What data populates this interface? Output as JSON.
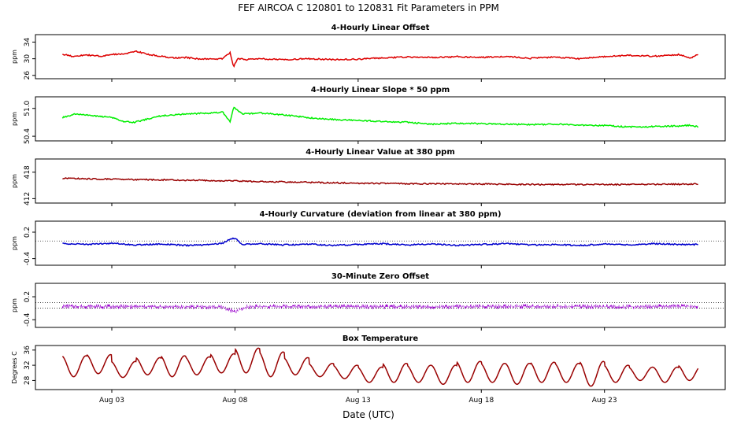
{
  "title": "FEF   AIRCOA C   120801 to 120831   Fit Parameters in PPM",
  "xlabel": "Date (UTC)",
  "x_ticks": [
    "Aug 03",
    "Aug 08",
    "Aug 13",
    "Aug 18",
    "Aug 23"
  ],
  "x_tick_days": [
    3,
    8,
    13,
    18,
    23
  ],
  "xlim": [
    -0.1,
    27.9
  ],
  "data_span": [
    1.0,
    26.8
  ],
  "chart_data": [
    {
      "type": "line",
      "title": "4-Hourly Linear Offset",
      "ylabel": "ppm",
      "y_ticks": [
        "34",
        "30",
        "26"
      ],
      "y_tick_values": [
        34,
        30,
        26
      ],
      "ylim": [
        25.2,
        35.8
      ],
      "color": "#dd0000",
      "style": "line",
      "series": [
        {
          "x": [
            1.0,
            1.4,
            2.0,
            2.5,
            3.0,
            3.5,
            4.0,
            4.5,
            5.0,
            5.5,
            6.0,
            6.5,
            7.0,
            7.5,
            7.8,
            7.95,
            8.1,
            8.4,
            9.0,
            10.0,
            11.0,
            12.0,
            13.0,
            14.0,
            15.0,
            16.0,
            17.0,
            18.0,
            19.0,
            20.0,
            21.0,
            22.0,
            23.0,
            24.0,
            25.0,
            26.0,
            26.5,
            26.8
          ],
          "values": [
            31.1,
            30.6,
            30.9,
            30.6,
            31.0,
            31.2,
            31.8,
            31.0,
            30.6,
            30.2,
            30.3,
            30.0,
            29.9,
            30.0,
            31.5,
            28.0,
            30.1,
            29.8,
            30.0,
            29.8,
            30.0,
            29.8,
            29.9,
            30.2,
            30.4,
            30.3,
            30.5,
            30.3,
            30.6,
            30.1,
            30.4,
            30.0,
            30.5,
            30.8,
            30.6,
            31.0,
            30.2,
            31.0
          ]
        }
      ]
    },
    {
      "type": "line",
      "title": "4-Hourly Linear Slope * 50 ppm",
      "ylabel": "ppm",
      "y_ticks": [
        "51.0",
        "50.4"
      ],
      "y_tick_values": [
        51.0,
        50.4
      ],
      "ylim": [
        50.3,
        51.25
      ],
      "color": "#00ee00",
      "style": "line",
      "series": [
        {
          "x": [
            1.0,
            1.5,
            2.0,
            3.0,
            3.5,
            3.9,
            4.3,
            5.0,
            6.0,
            7.0,
            7.5,
            7.8,
            7.95,
            8.3,
            9.0,
            10.0,
            11.0,
            12.0,
            13.0,
            14.0,
            15.0,
            16.0,
            17.0,
            18.0,
            19.0,
            20.0,
            21.0,
            22.0,
            23.0,
            24.0,
            25.0,
            26.0,
            26.5,
            26.8
          ],
          "values": [
            50.8,
            50.88,
            50.86,
            50.8,
            50.72,
            50.7,
            50.75,
            50.84,
            50.88,
            50.9,
            50.92,
            50.72,
            51.02,
            50.88,
            50.9,
            50.86,
            50.8,
            50.76,
            50.74,
            50.72,
            50.7,
            50.66,
            50.68,
            50.67,
            50.66,
            50.65,
            50.66,
            50.64,
            50.63,
            50.6,
            50.61,
            50.62,
            50.64,
            50.6
          ]
        }
      ]
    },
    {
      "type": "line",
      "title": "4-Hourly Linear Value at 380 ppm",
      "ylabel": "ppm",
      "y_ticks": [
        "418",
        "412"
      ],
      "y_tick_values": [
        418,
        412
      ],
      "ylim": [
        411.0,
        421.0
      ],
      "color": "#990000",
      "style": "line",
      "series": [
        {
          "x": [
            1.0,
            3.0,
            6.0,
            8.0,
            10.0,
            12.0,
            13.0,
            15.0,
            18.0,
            21.0,
            24.0,
            26.8
          ],
          "values": [
            416.6,
            416.4,
            416.2,
            416.0,
            415.8,
            415.6,
            415.5,
            415.4,
            415.3,
            415.2,
            415.2,
            415.3
          ]
        }
      ]
    },
    {
      "type": "line",
      "title": "4-Hourly Curvature (deviation from linear at 380 ppm)",
      "ylabel": "ppm",
      "y_ticks": [
        "0.2",
        "-0.4"
      ],
      "y_tick_values": [
        0.2,
        -0.4
      ],
      "ylim": [
        -0.55,
        0.45
      ],
      "color": "#0000cc",
      "style": "line",
      "reference_line": 0.0,
      "series": [
        {
          "x": [
            1.0,
            2.0,
            3.0,
            4.0,
            5.0,
            6.0,
            7.0,
            7.5,
            7.8,
            8.0,
            8.3,
            9.0,
            10.0,
            11.0,
            12.0,
            13.0,
            14.0,
            15.0,
            16.0,
            17.0,
            18.0,
            19.0,
            20.0,
            21.0,
            22.0,
            23.0,
            24.0,
            25.0,
            26.0,
            26.8
          ],
          "values": [
            -0.06,
            -0.08,
            -0.05,
            -0.09,
            -0.07,
            -0.1,
            -0.08,
            -0.05,
            0.05,
            0.06,
            -0.08,
            -0.06,
            -0.09,
            -0.07,
            -0.1,
            -0.08,
            -0.06,
            -0.09,
            -0.07,
            -0.1,
            -0.08,
            -0.06,
            -0.09,
            -0.08,
            -0.1,
            -0.07,
            -0.09,
            -0.06,
            -0.08,
            -0.08
          ]
        }
      ]
    },
    {
      "type": "scatter",
      "title": "30-Minute Zero Offset",
      "ylabel": "ppm",
      "y_ticks": [
        "0.2",
        "-0.4"
      ],
      "y_tick_values": [
        0.2,
        -0.4
      ],
      "ylim": [
        -0.6,
        0.55
      ],
      "color": "#9900cc",
      "style": "noise",
      "reference_lines": [
        0.05,
        -0.1
      ],
      "series": [
        {
          "x": [
            1.0,
            4.0,
            7.5,
            8.0,
            8.5,
            10.0,
            13.0,
            16.0,
            20.0,
            24.0,
            26.8
          ],
          "values": [
            -0.05,
            -0.06,
            -0.07,
            -0.2,
            -0.06,
            -0.05,
            -0.06,
            -0.06,
            -0.05,
            -0.06,
            -0.05
          ]
        }
      ]
    },
    {
      "type": "line",
      "title": "Box Temperature",
      "ylabel": "Degrees C",
      "y_ticks": [
        "36",
        "32",
        "28"
      ],
      "y_tick_values": [
        36,
        32,
        28
      ],
      "ylim": [
        25.6,
        37.2
      ],
      "color": "#990000",
      "style": "diurnal",
      "diurnal": {
        "peak_day_fraction": 0.95,
        "peaks": [
          34.5,
          34.8,
          33.0,
          34.0,
          34.5,
          34.2,
          35.0,
          36.5,
          35.5,
          34.0,
          32.5,
          32.0,
          31.5,
          32.5,
          32.0,
          32.0,
          33.0,
          32.5,
          32.5,
          32.8,
          32.5,
          33.0,
          32.0,
          31.5,
          31.5,
          32.0,
          33.5,
          31.0
        ],
        "troughs": [
          29.0,
          29.8,
          28.8,
          29.5,
          29.0,
          29.5,
          30.0,
          30.0,
          29.0,
          29.5,
          29.0,
          28.5,
          27.5,
          27.5,
          27.5,
          27.0,
          27.5,
          27.5,
          27.0,
          27.5,
          27.5,
          26.5,
          27.5,
          28.0,
          27.5,
          28.0,
          28.0,
          28.0
        ]
      },
      "series": [
        {
          "x": [
            1.0,
            26.8
          ],
          "values": [
            34.0,
            30.5
          ]
        }
      ]
    }
  ]
}
